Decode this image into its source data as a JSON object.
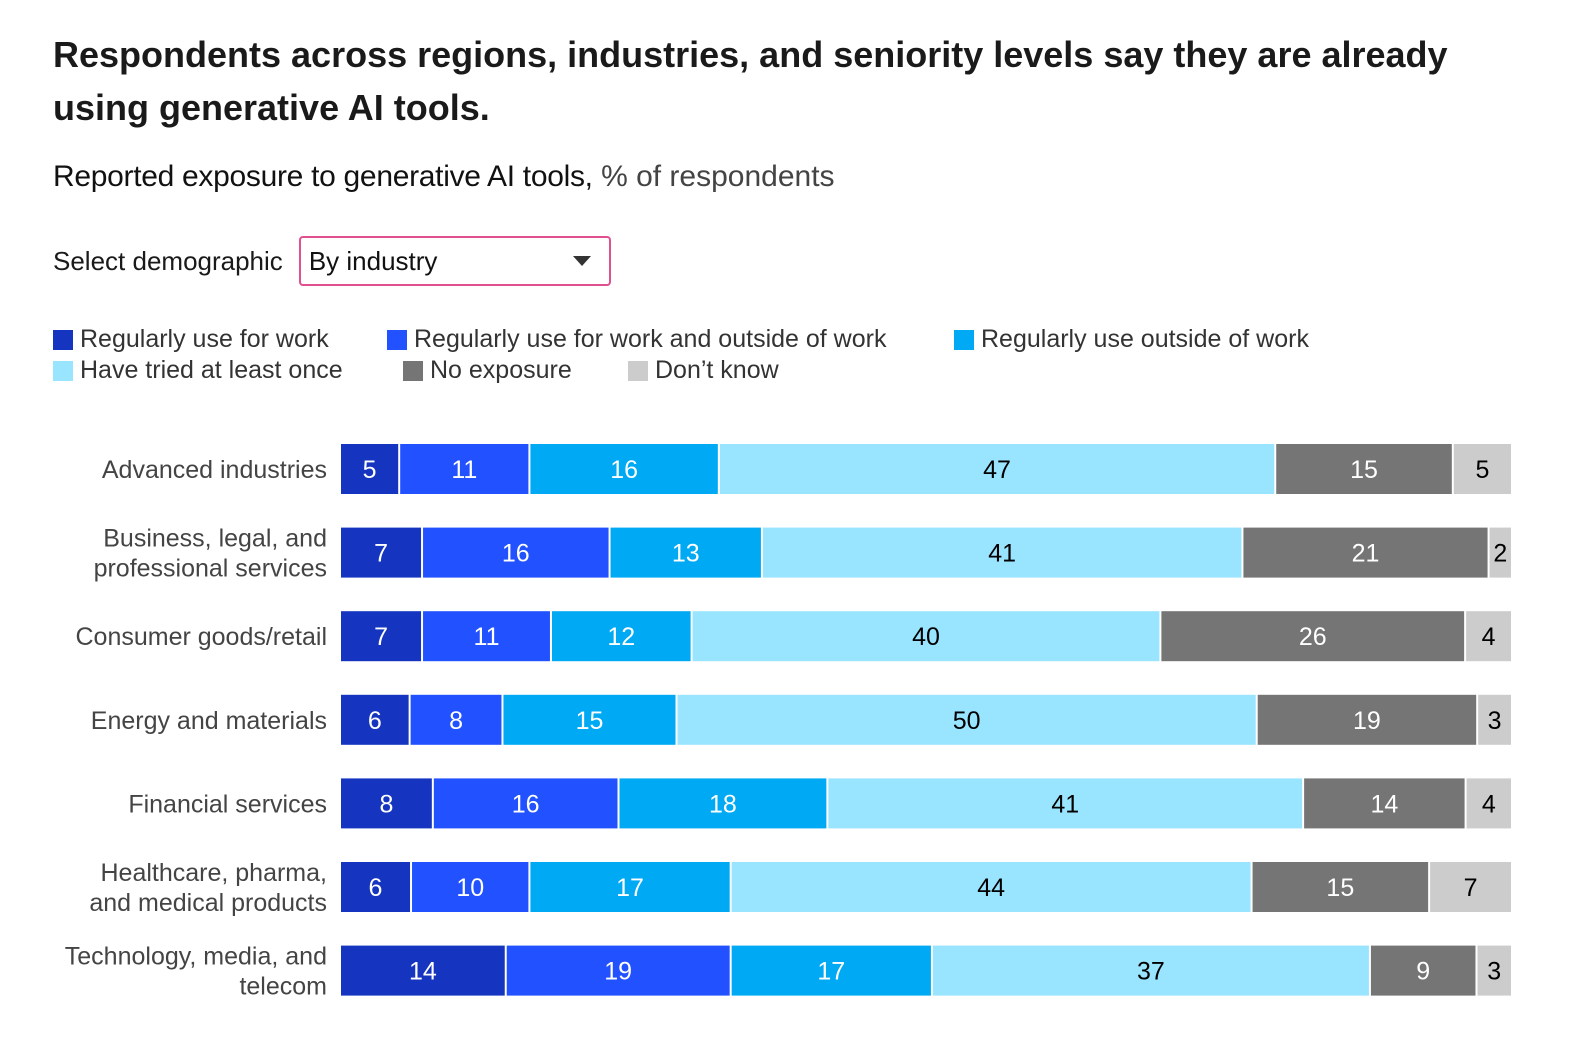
{
  "title": "Respondents across regions, industries, and seniority levels say they are already using generative AI tools.",
  "subtitle": {
    "main": "Reported exposure to generative AI tools,",
    "unit": "% of respondents"
  },
  "selector": {
    "label": "Select demographic",
    "value": "By industry",
    "icon": "caret-down-icon",
    "border_color": "#e0508f"
  },
  "chart_data": {
    "type": "bar",
    "orientation": "horizontal",
    "stacked": true,
    "title": "Reported exposure to generative AI tools, % of respondents",
    "categories": [
      [
        "Advanced industries"
      ],
      [
        "Business, legal, and",
        "professional services"
      ],
      [
        "Consumer goods/retail"
      ],
      [
        "Energy and materials"
      ],
      [
        "Financial services"
      ],
      [
        "Healthcare, pharma,",
        "and medical products"
      ],
      [
        "Technology, media, and",
        "telecom"
      ]
    ],
    "series": [
      {
        "name": "Regularly use for work",
        "color": "#1535c0",
        "text_color": "#ffffff",
        "values": [
          5,
          7,
          7,
          6,
          8,
          6,
          14
        ]
      },
      {
        "name": "Regularly use for work and outside of work",
        "color": "#2251ff",
        "text_color": "#ffffff",
        "values": [
          11,
          16,
          11,
          8,
          16,
          10,
          19
        ]
      },
      {
        "name": "Regularly use outside of work",
        "color": "#00a9f4",
        "text_color": "#ffffff",
        "values": [
          16,
          13,
          12,
          15,
          18,
          17,
          17
        ]
      },
      {
        "name": "Have tried at least once",
        "color": "#99e4ff",
        "text_color": "#000000",
        "values": [
          47,
          41,
          40,
          50,
          41,
          44,
          37
        ]
      },
      {
        "name": "No exposure",
        "color": "#757575",
        "text_color": "#ffffff",
        "values": [
          15,
          21,
          26,
          19,
          14,
          15,
          9
        ]
      },
      {
        "name": "Don’t know",
        "color": "#cccccc",
        "text_color": "#000000",
        "values": [
          5,
          2,
          4,
          3,
          4,
          7,
          3
        ]
      }
    ],
    "legend_position": "top",
    "grid": false
  }
}
